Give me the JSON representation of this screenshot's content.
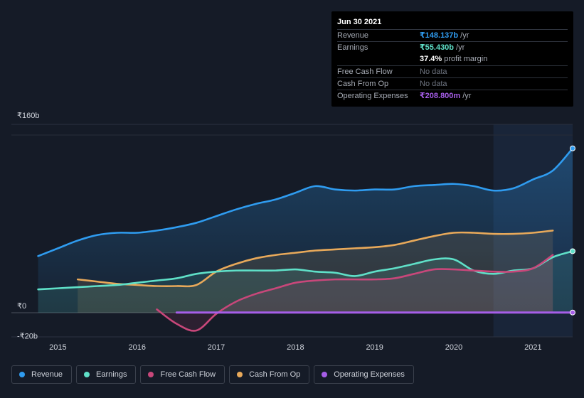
{
  "tooltip": {
    "date": "Jun 30 2021",
    "rows": [
      {
        "label": "Revenue",
        "value": "₹148.137b",
        "unit": "/yr",
        "color": "#2f9cf0"
      },
      {
        "label": "Earnings",
        "value": "₹55.430b",
        "unit": "/yr",
        "color": "#5fe0c8"
      },
      {
        "label": "",
        "value": "37.4%",
        "unit": "profit margin",
        "color": "#ffffff"
      },
      {
        "label": "Free Cash Flow",
        "value": "No data",
        "unit": "",
        "color": "nodata"
      },
      {
        "label": "Cash From Op",
        "value": "No data",
        "unit": "",
        "color": "nodata"
      },
      {
        "label": "Operating Expenses",
        "value": "₹208.800m",
        "unit": "/yr",
        "color": "#a65ee8"
      }
    ]
  },
  "legend": [
    {
      "label": "Revenue",
      "color": "#2f9cf0"
    },
    {
      "label": "Earnings",
      "color": "#5fe0c8"
    },
    {
      "label": "Free Cash Flow",
      "color": "#c8477a"
    },
    {
      "label": "Cash From Op",
      "color": "#e8a95a"
    },
    {
      "label": "Operating Expenses",
      "color": "#a65ee8"
    }
  ],
  "chart_data": {
    "type": "line",
    "title": "",
    "xlabel": "",
    "ylabel": "",
    "y_tick_labels": [
      "₹160b",
      "₹0",
      "-₹20b"
    ],
    "y_ticks": [
      160,
      0,
      -20
    ],
    "ylim": [
      -20,
      160
    ],
    "xlim": [
      2014.7,
      2021.5
    ],
    "x_ticks": [
      2015,
      2016,
      2017,
      2018,
      2019,
      2020,
      2021
    ],
    "x_tick_labels": [
      "2015",
      "2016",
      "2017",
      "2018",
      "2019",
      "2020",
      "2021"
    ],
    "forecast_shade_start": 2020.5,
    "series": [
      {
        "name": "Revenue",
        "color": "#2f9cf0",
        "fill": true,
        "x": [
          2014.75,
          2015.0,
          2015.25,
          2015.5,
          2015.75,
          2016.0,
          2016.25,
          2016.5,
          2016.75,
          2017.0,
          2017.25,
          2017.5,
          2017.75,
          2018.0,
          2018.25,
          2018.5,
          2018.75,
          2019.0,
          2019.25,
          2019.5,
          2019.75,
          2020.0,
          2020.25,
          2020.5,
          2020.75,
          2021.0,
          2021.25,
          2021.5
        ],
        "values": [
          51,
          58,
          65,
          70,
          72,
          72,
          74,
          77,
          81,
          87,
          93,
          98,
          102,
          108,
          114,
          111,
          110,
          111,
          111,
          114,
          115,
          116,
          114,
          110,
          112,
          120,
          128,
          148
        ]
      },
      {
        "name": "Earnings",
        "color": "#5fe0c8",
        "fill": true,
        "x": [
          2014.75,
          2015.0,
          2015.25,
          2015.5,
          2015.75,
          2016.0,
          2016.25,
          2016.5,
          2016.75,
          2017.0,
          2017.25,
          2017.5,
          2017.75,
          2018.0,
          2018.25,
          2018.5,
          2018.75,
          2019.0,
          2019.25,
          2019.5,
          2019.75,
          2020.0,
          2020.25,
          2020.5,
          2020.75,
          2021.0,
          2021.25,
          2021.5
        ],
        "values": [
          21,
          22,
          23,
          24,
          25,
          27,
          29,
          31,
          35,
          37,
          38,
          38,
          38,
          39,
          37,
          36,
          33,
          37,
          40,
          44,
          48,
          48,
          38,
          35,
          38,
          40,
          50,
          55.4
        ]
      },
      {
        "name": "Free Cash Flow",
        "color": "#c8477a",
        "fill": true,
        "x": [
          2016.25,
          2016.5,
          2016.75,
          2017.0,
          2017.25,
          2017.5,
          2017.75,
          2018.0,
          2018.25,
          2018.5,
          2018.75,
          2019.0,
          2019.25,
          2019.5,
          2019.75,
          2020.0,
          2020.25,
          2020.5,
          2020.75,
          2021.0,
          2021.25
        ],
        "values": [
          3,
          -10,
          -16,
          -1,
          10,
          17,
          22,
          27,
          29,
          30,
          30,
          30,
          31,
          35,
          39,
          39,
          38,
          37,
          37,
          40,
          52
        ]
      },
      {
        "name": "Cash From Op",
        "color": "#e8a95a",
        "fill": true,
        "x": [
          2015.25,
          2015.5,
          2015.75,
          2016.0,
          2016.25,
          2016.5,
          2016.75,
          2017.0,
          2017.25,
          2017.5,
          2017.75,
          2018.0,
          2018.25,
          2018.5,
          2018.75,
          2019.0,
          2019.25,
          2019.5,
          2019.75,
          2020.0,
          2020.25,
          2020.5,
          2020.75,
          2021.0,
          2021.25
        ],
        "values": [
          30,
          28,
          26,
          25,
          24,
          24,
          25,
          37,
          44,
          49,
          52,
          54,
          56,
          57,
          58,
          59,
          61,
          65,
          69,
          72,
          72,
          71,
          71,
          72,
          74
        ]
      },
      {
        "name": "Operating Expenses",
        "color": "#a65ee8",
        "fill": false,
        "x": [
          2016.5,
          2017.0,
          2017.5,
          2018.0,
          2018.5,
          2019.0,
          2019.5,
          2020.0,
          2020.5,
          2021.0,
          2021.5
        ],
        "values": [
          0.2,
          0.2,
          0.2,
          0.2,
          0.2,
          0.2,
          0.2,
          0.2,
          0.2,
          0.2,
          0.2
        ]
      }
    ]
  }
}
